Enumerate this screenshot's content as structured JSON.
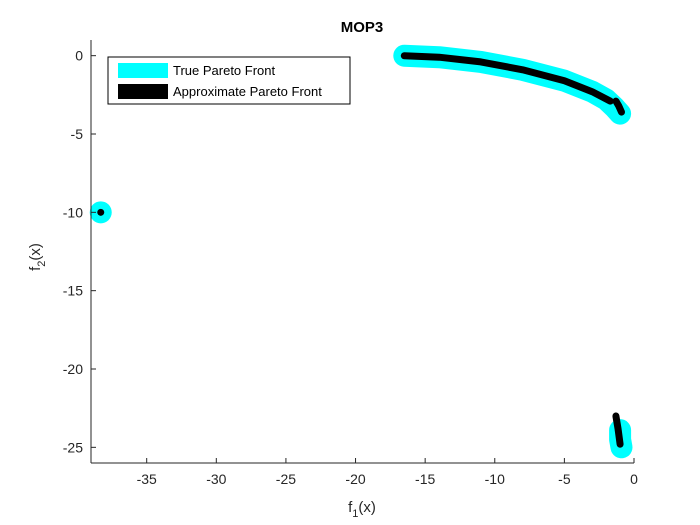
{
  "chart_data": {
    "type": "line",
    "title": "MOP3",
    "xlabel": {
      "base": "f",
      "sub": "1",
      "tail": "(x)"
    },
    "ylabel": {
      "base": "f",
      "sub": "2",
      "tail": "(x)"
    },
    "xlim": [
      -39,
      0
    ],
    "ylim": [
      -26,
      1
    ],
    "xticks": [
      -35,
      -30,
      -25,
      -20,
      -15,
      -10,
      -5,
      0
    ],
    "yticks": [
      0,
      -5,
      -10,
      -15,
      -20,
      -25
    ],
    "legend_position": "top-left",
    "grid": false,
    "series": [
      {
        "name": "True Pareto Front",
        "color": "#00ffff",
        "segments": [
          [
            [
              -38.3,
              -10.0
            ]
          ],
          [
            [
              -16.5,
              0.0
            ],
            [
              -14.0,
              -0.1
            ],
            [
              -11.0,
              -0.4
            ],
            [
              -8.0,
              -0.9
            ],
            [
              -5.0,
              -1.6
            ],
            [
              -3.0,
              -2.3
            ],
            [
              -2.0,
              -2.8
            ],
            [
              -1.4,
              -3.3
            ],
            [
              -1.0,
              -3.7
            ]
          ],
          [
            [
              -1.0,
              -23.9
            ],
            [
              -1.0,
              -24.5
            ],
            [
              -0.9,
              -25.0
            ]
          ]
        ]
      },
      {
        "name": "Approximate Pareto Front",
        "color": "#000000",
        "segments": [
          [
            [
              -38.3,
              -10.0
            ]
          ],
          [
            [
              -16.5,
              0.0
            ],
            [
              -14.0,
              -0.1
            ],
            [
              -11.0,
              -0.4
            ],
            [
              -8.0,
              -0.9
            ],
            [
              -5.0,
              -1.6
            ],
            [
              -3.0,
              -2.3
            ],
            [
              -1.7,
              -2.9
            ]
          ],
          [
            [
              -1.3,
              -2.9
            ],
            [
              -1.1,
              -3.2
            ],
            [
              -0.9,
              -3.6
            ]
          ],
          [
            [
              -1.3,
              -23.0
            ],
            [
              -1.15,
              -23.8
            ],
            [
              -1.0,
              -24.8
            ]
          ]
        ]
      }
    ]
  }
}
